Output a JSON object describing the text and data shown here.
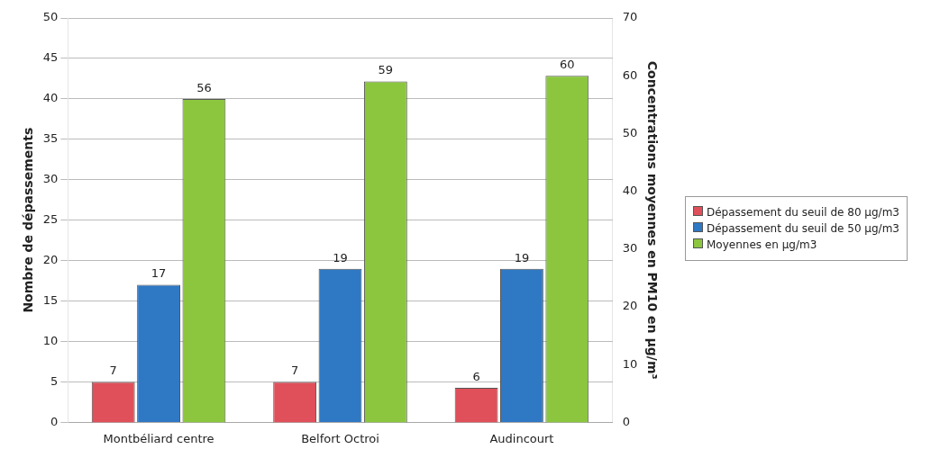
{
  "chart_data": {
    "type": "bar",
    "categories": [
      "Montbéliard centre",
      "Belfort Octroi",
      "Audincourt"
    ],
    "series": [
      {
        "name": "Dépassement du seuil de 80 µg/m3",
        "color": "#e0505a",
        "values": [
          7,
          7,
          6
        ],
        "axis": "y2"
      },
      {
        "name": "Dépassement du seuil de 50 µg/m3",
        "color": "#2f78c4",
        "values": [
          17,
          19,
          19
        ]
      },
      {
        "name": "Moyennes en µg/m3",
        "color": "#8cc63f",
        "values": [
          56,
          59,
          60
        ],
        "axis": "y2"
      }
    ],
    "ylabel": "Nombre de dépassements",
    "y2label": "Concentrations moyennes en PM10 en µg/m³",
    "ylim": [
      0,
      50
    ],
    "yticks": [
      0,
      5,
      10,
      15,
      20,
      25,
      30,
      35,
      40,
      45,
      50
    ],
    "y2lim": [
      0,
      70
    ],
    "y2ticks": [
      0,
      10,
      20,
      30,
      40,
      50,
      60,
      70
    ],
    "grid": "y",
    "legend": "right",
    "data_labels": true
  }
}
